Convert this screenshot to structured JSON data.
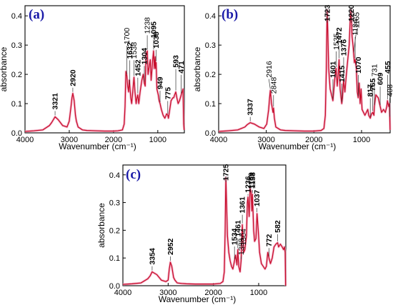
{
  "chart_data": [
    {
      "type": "line",
      "panel_label": "(a)",
      "xlabel": "Wavenumber",
      "xunit": "(cm⁻¹)",
      "ylabel": "absorbance",
      "xlim": [
        4000,
        400
      ],
      "ylim": [
        0,
        0.42
      ],
      "xticks": [
        4000,
        3000,
        2000,
        1000
      ],
      "yticks": [
        0.0,
        0.1,
        0.2,
        0.3,
        0.4
      ],
      "ytick_labels": [
        "0.0",
        "0.1",
        "0.2",
        "0.3",
        "0.4"
      ],
      "x": [
        4000,
        3800,
        3600,
        3450,
        3400,
        3321,
        3250,
        3150,
        3050,
        3000,
        2960,
        2940,
        2920,
        2890,
        2860,
        2840,
        2800,
        2700,
        2600,
        2400,
        2200,
        2000,
        1900,
        1800,
        1760,
        1740,
        1720,
        1700,
        1680,
        1660,
        1645,
        1632,
        1610,
        1590,
        1560,
        1538,
        1515,
        1490,
        1470,
        1452,
        1430,
        1400,
        1380,
        1360,
        1330,
        1304,
        1285,
        1265,
        1238,
        1220,
        1200,
        1170,
        1150,
        1130,
        1115,
        1095,
        1080,
        1060,
        1050,
        1038,
        1020,
        990,
        970,
        949,
        920,
        880,
        840,
        800,
        775,
        760,
        730,
        700,
        660,
        640,
        620,
        593,
        570,
        540,
        510,
        490,
        471,
        450,
        430,
        415,
        405
      ],
      "values": [
        0.005,
        0.007,
        0.01,
        0.025,
        0.035,
        0.055,
        0.045,
        0.025,
        0.02,
        0.04,
        0.09,
        0.12,
        0.135,
        0.11,
        0.06,
        0.04,
        0.02,
        0.01,
        0.008,
        0.007,
        0.006,
        0.006,
        0.007,
        0.01,
        0.03,
        0.09,
        0.21,
        0.195,
        0.16,
        0.14,
        0.18,
        0.16,
        0.12,
        0.1,
        0.15,
        0.19,
        0.14,
        0.1,
        0.12,
        0.13,
        0.1,
        0.14,
        0.16,
        0.18,
        0.2,
        0.17,
        0.16,
        0.27,
        0.28,
        0.2,
        0.22,
        0.25,
        0.18,
        0.22,
        0.25,
        0.28,
        0.22,
        0.26,
        0.22,
        0.24,
        0.15,
        0.13,
        0.11,
        0.1,
        0.08,
        0.06,
        0.05,
        0.065,
        0.06,
        0.05,
        0.08,
        0.11,
        0.12,
        0.12,
        0.13,
        0.14,
        0.12,
        0.1,
        0.11,
        0.12,
        0.13,
        0.14,
        0.15,
        0.03,
        0.01
      ],
      "peaks": [
        {
          "label": "3321",
          "x": 3321,
          "bold": true
        },
        {
          "label": "2920",
          "x": 2920,
          "bold": true
        },
        {
          "label": "1700",
          "x": 1700,
          "bold": false
        },
        {
          "label": "1632",
          "x": 1632,
          "bold": true
        },
        {
          "label": "1538",
          "x": 1538,
          "bold": false
        },
        {
          "label": "1452",
          "x": 1452,
          "bold": true
        },
        {
          "label": "1304",
          "x": 1304,
          "bold": true
        },
        {
          "label": "1238",
          "x": 1238,
          "bold": false
        },
        {
          "label": "1095",
          "x": 1095,
          "bold": true
        },
        {
          "label": "1038",
          "x": 1038,
          "bold": true
        },
        {
          "label": "949",
          "x": 949,
          "bold": true
        },
        {
          "label": "775",
          "x": 775,
          "bold": true
        },
        {
          "label": "593",
          "x": 593,
          "bold": true
        },
        {
          "label": "471",
          "x": 471,
          "bold": true
        }
      ]
    },
    {
      "type": "line",
      "panel_label": "(b)",
      "xlabel": "Wavenumber",
      "xunit": "(cm⁻¹)",
      "ylabel": "absorbance",
      "xlim": [
        4000,
        400
      ],
      "ylim": [
        0,
        0.42
      ],
      "xticks": [
        4000,
        3000,
        2000,
        1000
      ],
      "yticks": [
        0.0,
        0.1,
        0.2,
        0.3,
        0.4
      ],
      "ytick_labels": [
        "0.0",
        "0.1",
        "0.2",
        "0.3",
        "0.4"
      ],
      "x": [
        4000,
        3800,
        3600,
        3450,
        3400,
        3337,
        3250,
        3150,
        3050,
        2990,
        2950,
        2930,
        2916,
        2890,
        2860,
        2848,
        2830,
        2800,
        2700,
        2600,
        2400,
        2200,
        2000,
        1850,
        1790,
        1760,
        1740,
        1723,
        1710,
        1690,
        1660,
        1630,
        1601,
        1580,
        1560,
        1535,
        1510,
        1490,
        1472,
        1450,
        1430,
        1415,
        1400,
        1376,
        1350,
        1320,
        1290,
        1260,
        1240,
        1220,
        1200,
        1180,
        1165,
        1150,
        1134,
        1110,
        1090,
        1070,
        1050,
        1030,
        1010,
        990,
        960,
        930,
        900,
        870,
        850,
        817,
        790,
        765,
        740,
        731,
        700,
        650,
        609,
        580,
        540,
        500,
        470,
        455,
        430,
        415,
        408,
        402
      ],
      "values": [
        0.005,
        0.007,
        0.01,
        0.02,
        0.028,
        0.035,
        0.03,
        0.02,
        0.015,
        0.03,
        0.08,
        0.12,
        0.145,
        0.1,
        0.07,
        0.085,
        0.05,
        0.02,
        0.01,
        0.008,
        0.007,
        0.006,
        0.006,
        0.008,
        0.015,
        0.06,
        0.22,
        0.42,
        0.35,
        0.22,
        0.15,
        0.13,
        0.11,
        0.15,
        0.19,
        0.22,
        0.16,
        0.2,
        0.25,
        0.15,
        0.12,
        0.1,
        0.12,
        0.18,
        0.14,
        0.2,
        0.25,
        0.3,
        0.38,
        0.42,
        0.33,
        0.3,
        0.27,
        0.24,
        0.25,
        0.22,
        0.14,
        0.12,
        0.17,
        0.1,
        0.15,
        0.08,
        0.07,
        0.06,
        0.07,
        0.08,
        0.06,
        0.05,
        0.065,
        0.07,
        0.06,
        0.09,
        0.13,
        0.12,
        0.09,
        0.07,
        0.08,
        0.07,
        0.09,
        0.11,
        0.09,
        0.1,
        0.05,
        0.01
      ],
      "peaks": [
        {
          "label": "3337",
          "x": 3337,
          "bold": true
        },
        {
          "label": "2916",
          "x": 2916,
          "bold": false
        },
        {
          "label": "2848",
          "x": 2848,
          "bold": false
        },
        {
          "label": "1723",
          "x": 1723,
          "bold": true
        },
        {
          "label": "1601",
          "x": 1601,
          "bold": true
        },
        {
          "label": "1535",
          "x": 1535,
          "bold": false
        },
        {
          "label": "1472",
          "x": 1472,
          "bold": true
        },
        {
          "label": "1415",
          "x": 1415,
          "bold": true
        },
        {
          "label": "1376",
          "x": 1376,
          "bold": true
        },
        {
          "label": "1220",
          "x": 1220,
          "bold": true
        },
        {
          "label": "1165",
          "x": 1165,
          "bold": false
        },
        {
          "label": "1134",
          "x": 1134,
          "bold": false
        },
        {
          "label": "1070",
          "x": 1070,
          "bold": true
        },
        {
          "label": "817",
          "x": 817,
          "bold": true
        },
        {
          "label": "765",
          "x": 765,
          "bold": true
        },
        {
          "label": "731",
          "x": 731,
          "bold": false
        },
        {
          "label": "609",
          "x": 609,
          "bold": true
        },
        {
          "label": "455",
          "x": 455,
          "bold": true
        },
        {
          "label": "408",
          "x": 408,
          "bold": false
        }
      ]
    },
    {
      "type": "line",
      "panel_label": "(c)",
      "xlabel": "Wavenumber",
      "xunit": "(cm⁻¹)",
      "ylabel": "absorbance",
      "xlim": [
        4000,
        400
      ],
      "ylim": [
        0,
        0.42
      ],
      "xticks": [
        4000,
        3000,
        2000,
        1000
      ],
      "yticks": [
        0.0,
        0.1,
        0.2,
        0.3,
        0.4
      ],
      "ytick_labels": [
        "0.0",
        "0.1",
        "0.2",
        "0.3",
        "0.4"
      ],
      "x": [
        4000,
        3800,
        3600,
        3450,
        3400,
        3354,
        3250,
        3150,
        3050,
        3000,
        2975,
        2952,
        2920,
        2880,
        2850,
        2800,
        2700,
        2600,
        2400,
        2200,
        2000,
        1850,
        1790,
        1760,
        1740,
        1725,
        1710,
        1690,
        1660,
        1630,
        1600,
        1570,
        1534,
        1510,
        1480,
        1461,
        1440,
        1410,
        1388,
        1361,
        1330,
        1304,
        1270,
        1250,
        1236,
        1210,
        1190,
        1169,
        1150,
        1138,
        1110,
        1090,
        1060,
        1037,
        1010,
        980,
        940,
        900,
        860,
        830,
        800,
        772,
        740,
        700,
        660,
        620,
        582,
        560,
        520,
        480,
        450,
        430,
        415,
        405
      ],
      "values": [
        0.005,
        0.007,
        0.01,
        0.025,
        0.035,
        0.05,
        0.04,
        0.02,
        0.015,
        0.02,
        0.06,
        0.085,
        0.07,
        0.03,
        0.02,
        0.01,
        0.008,
        0.007,
        0.006,
        0.006,
        0.006,
        0.008,
        0.015,
        0.05,
        0.2,
        0.39,
        0.3,
        0.18,
        0.12,
        0.09,
        0.07,
        0.06,
        0.09,
        0.11,
        0.075,
        0.13,
        0.07,
        0.05,
        0.09,
        0.22,
        0.12,
        0.13,
        0.18,
        0.3,
        0.32,
        0.25,
        0.35,
        0.34,
        0.27,
        0.33,
        0.2,
        0.16,
        0.17,
        0.26,
        0.2,
        0.12,
        0.08,
        0.07,
        0.06,
        0.07,
        0.12,
        0.1,
        0.08,
        0.1,
        0.14,
        0.15,
        0.155,
        0.14,
        0.15,
        0.14,
        0.13,
        0.14,
        0.12,
        0.0
      ],
      "peaks": [
        {
          "label": "3354",
          "x": 3354,
          "bold": true
        },
        {
          "label": "2952",
          "x": 2952,
          "bold": true
        },
        {
          "label": "1725",
          "x": 1725,
          "bold": true
        },
        {
          "label": "1534",
          "x": 1534,
          "bold": true
        },
        {
          "label": "1461",
          "x": 1461,
          "bold": true
        },
        {
          "label": "1388",
          "x": 1388,
          "bold": false
        },
        {
          "label": "1361",
          "x": 1361,
          "bold": true
        },
        {
          "label": "1304",
          "x": 1304,
          "bold": false
        },
        {
          "label": "1236",
          "x": 1236,
          "bold": true
        },
        {
          "label": "1169",
          "x": 1169,
          "bold": true
        },
        {
          "label": "1138",
          "x": 1138,
          "bold": true
        },
        {
          "label": "1037",
          "x": 1037,
          "bold": true
        },
        {
          "label": "772",
          "x": 772,
          "bold": true
        },
        {
          "label": "582",
          "x": 582,
          "bold": true
        }
      ]
    }
  ]
}
